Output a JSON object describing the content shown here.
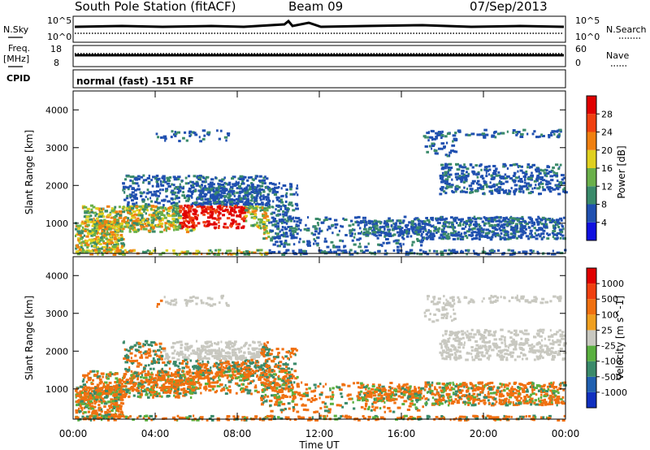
{
  "header": {
    "station": "South Pole Station (fitACF)",
    "beam": "Beam 09",
    "date": "07/Sep/2013"
  },
  "top_panel": {
    "left_label": "N.Sky",
    "left_tick_hi": "10^5",
    "left_tick_lo": "10^0",
    "right_label": "N.Search",
    "right_tick_hi": "10^5",
    "right_tick_lo": "10^0"
  },
  "freq_panel": {
    "left_label_1": "Freq.",
    "left_label_2": "[MHz]",
    "left_tick_hi": "18",
    "left_tick_lo": "8",
    "right_label": "Nave",
    "right_tick_hi": "60",
    "right_tick_lo": "0"
  },
  "cpid_panel": {
    "label": "CPID",
    "text": "normal (fast) -151 RF"
  },
  "chart_data": {
    "type": "heatmap",
    "xlabel": "Time UT",
    "x_ticks": [
      "00:00",
      "04:00",
      "08:00",
      "12:00",
      "16:00",
      "20:00",
      "00:00"
    ],
    "ylabel": "Slant Range [km]",
    "y_ticks": [
      "1000",
      "2000",
      "3000",
      "4000"
    ],
    "panels": [
      {
        "name": "power",
        "colorbar_label": "Power [dB]",
        "colorbar_ticks": [
          "4",
          "8",
          "12",
          "16",
          "20",
          "24",
          "28"
        ],
        "colorbar_colors": [
          "#1010e0",
          "#2050b0",
          "#3a8a6a",
          "#6ab04a",
          "#e0d020",
          "#f08010",
          "#f04010",
          "#e00000"
        ]
      },
      {
        "name": "velocity",
        "colorbar_label": "Velocity [m s^-1]",
        "colorbar_ticks": [
          "1000",
          "500",
          "100",
          "25",
          "-25",
          "-100",
          "-500",
          "-1000"
        ],
        "colorbar_colors": [
          "#1030c0",
          "#2060b0",
          "#3a8a6a",
          "#5ab040",
          "#c8c8c0",
          "#f0a020",
          "#f07010",
          "#f04010",
          "#e00000"
        ]
      }
    ]
  }
}
